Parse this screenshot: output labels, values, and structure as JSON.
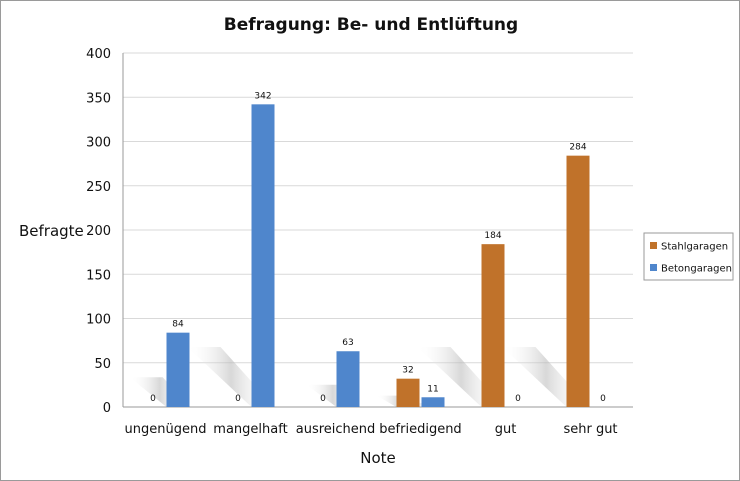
{
  "chart_data": {
    "type": "bar",
    "title": "Befragung: Be- und Entlüftung",
    "xlabel": "Note",
    "ylabel": "Befragte",
    "ylim": [
      0,
      400
    ],
    "yticks": [
      0,
      50,
      100,
      150,
      200,
      250,
      300,
      350,
      400
    ],
    "grid": true,
    "legend_position": "right",
    "categories": [
      "ungenügend",
      "mangelhaft",
      "ausreichend",
      "befriedigend",
      "gut",
      "sehr gut"
    ],
    "series": [
      {
        "name": "Stahlgaragen",
        "color": "#c0722a",
        "values": [
          0,
          0,
          0,
          32,
          184,
          284
        ]
      },
      {
        "name": "Betongaragen",
        "color": "#4f86cc",
        "values": [
          84,
          342,
          63,
          11,
          0,
          0
        ]
      }
    ]
  }
}
